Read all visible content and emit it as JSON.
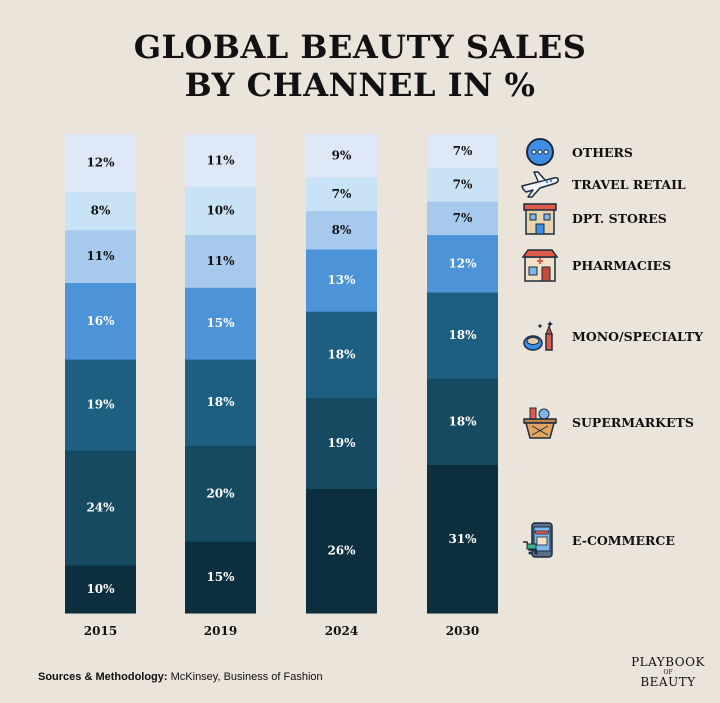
{
  "title_line1": "GLOBAL BEAUTY SALES",
  "title_line2": "BY CHANNEL IN %",
  "chart_data": {
    "type": "bar",
    "stacked": true,
    "title": "GLOBAL BEAUTY SALES BY CHANNEL IN %",
    "categories": [
      "2015",
      "2019",
      "2024",
      "2030"
    ],
    "series": [
      {
        "name": "E-COMMERCE",
        "color": "#0d2e3f",
        "values": [
          10,
          15,
          26,
          31
        ]
      },
      {
        "name": "SUPERMARKETS",
        "color": "#164a61",
        "values": [
          24,
          20,
          19,
          18
        ]
      },
      {
        "name": "MONO/SPECIALTY",
        "color": "#1c5f80",
        "values": [
          19,
          18,
          18,
          18
        ]
      },
      {
        "name": "PHARMACIES",
        "color": "#4c93d8",
        "values": [
          16,
          15,
          13,
          12
        ]
      },
      {
        "name": "DPT. STORES",
        "color": "#a8c9ee",
        "values": [
          11,
          11,
          8,
          7
        ]
      },
      {
        "name": "TRAVEL RETAIL",
        "color": "#c9e3f6",
        "values": [
          8,
          10,
          7,
          7
        ]
      },
      {
        "name": "OTHERS",
        "color": "#dfe8f7",
        "values": [
          12,
          11,
          9,
          7
        ]
      }
    ],
    "value_suffix": "%",
    "legend_position": "right"
  },
  "legend": [
    {
      "label": "OTHERS",
      "icon": "others-icon"
    },
    {
      "label": "TRAVEL RETAIL",
      "icon": "airplane-icon"
    },
    {
      "label": "DPT. STORES",
      "icon": "department-store-icon"
    },
    {
      "label": "PHARMACIES",
      "icon": "pharmacy-icon"
    },
    {
      "label": "MONO/SPECIALTY",
      "icon": "cosmetics-icon"
    },
    {
      "label": "SUPERMARKETS",
      "icon": "shopping-basket-icon"
    },
    {
      "label": "E-COMMERCE",
      "icon": "ecommerce-icon"
    }
  ],
  "source_label": "Sources & Methodology:",
  "source_text": " McKinsey, Business of Fashion",
  "brand": {
    "line1": "PLAYBOOK",
    "line2": "OF",
    "line3": "BEAUTY"
  }
}
